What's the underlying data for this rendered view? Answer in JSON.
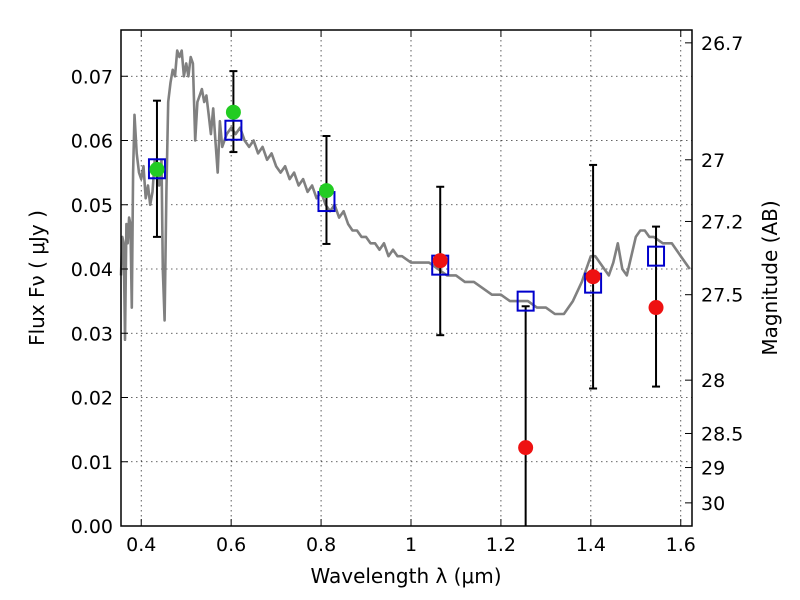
{
  "chart_data": {
    "type": "scatter",
    "xlabel": "Wavelength  λ (μm)",
    "ylabel": "Flux  Fν  ( μJy )",
    "ylabel_right": "Magnitude (AB)",
    "xlim": [
      0.355,
      1.625
    ],
    "ylim": [
      0,
      0.0772
    ],
    "grid": true,
    "x_ticks": [
      0.4,
      0.6,
      0.8,
      1.0,
      1.2,
      1.4,
      1.6
    ],
    "x_tick_labels": [
      "0.4",
      "0.6",
      "0.8",
      "1",
      "1.2",
      "1.4",
      "1.6"
    ],
    "y_ticks": [
      0,
      0.01,
      0.02,
      0.03,
      0.04,
      0.05,
      0.06,
      0.07
    ],
    "y_tick_labels": [
      "0.00",
      "0.01",
      "0.02",
      "0.03",
      "0.04",
      "0.05",
      "0.06",
      "0.07"
    ],
    "right_ticks": [
      {
        "label": "26.7",
        "flux": 0.0752
      },
      {
        "label": "27",
        "flux": 0.057
      },
      {
        "label": "27.2",
        "flux": 0.0474
      },
      {
        "label": "27.5",
        "flux": 0.036
      },
      {
        "label": "28",
        "flux": 0.0227
      },
      {
        "label": "28.5",
        "flux": 0.0144
      },
      {
        "label": "29",
        "flux": 0.0091
      },
      {
        "label": "30",
        "flux": 0.0036
      }
    ],
    "colors": {
      "model": "#808080",
      "model_points": "#0000cc",
      "detections": "#22cc22",
      "upper_limits": "#ee1111",
      "error_bars": "#000000"
    },
    "model_spectrum": [
      [
        0.355,
        0.039
      ],
      [
        0.358,
        0.045
      ],
      [
        0.361,
        0.044
      ],
      [
        0.364,
        0.029
      ],
      [
        0.367,
        0.047
      ],
      [
        0.37,
        0.044
      ],
      [
        0.373,
        0.048
      ],
      [
        0.376,
        0.047
      ],
      [
        0.379,
        0.034
      ],
      [
        0.382,
        0.055
      ],
      [
        0.385,
        0.064
      ],
      [
        0.39,
        0.058
      ],
      [
        0.395,
        0.055
      ],
      [
        0.4,
        0.054
      ],
      [
        0.405,
        0.056
      ],
      [
        0.41,
        0.051
      ],
      [
        0.415,
        0.053
      ],
      [
        0.42,
        0.05
      ],
      [
        0.425,
        0.052
      ],
      [
        0.43,
        0.057
      ],
      [
        0.435,
        0.055
      ],
      [
        0.44,
        0.053
      ],
      [
        0.445,
        0.057
      ],
      [
        0.448,
        0.04
      ],
      [
        0.452,
        0.032
      ],
      [
        0.456,
        0.052
      ],
      [
        0.46,
        0.066
      ],
      [
        0.465,
        0.069
      ],
      [
        0.47,
        0.071
      ],
      [
        0.475,
        0.07
      ],
      [
        0.48,
        0.074
      ],
      [
        0.485,
        0.073
      ],
      [
        0.49,
        0.074
      ],
      [
        0.495,
        0.07
      ],
      [
        0.5,
        0.072
      ],
      [
        0.505,
        0.07
      ],
      [
        0.51,
        0.073
      ],
      [
        0.515,
        0.072
      ],
      [
        0.52,
        0.06
      ],
      [
        0.525,
        0.066
      ],
      [
        0.53,
        0.067
      ],
      [
        0.535,
        0.068
      ],
      [
        0.54,
        0.066
      ],
      [
        0.545,
        0.067
      ],
      [
        0.55,
        0.064
      ],
      [
        0.555,
        0.061
      ],
      [
        0.56,
        0.065
      ],
      [
        0.565,
        0.06
      ],
      [
        0.57,
        0.055
      ],
      [
        0.575,
        0.063
      ],
      [
        0.58,
        0.059
      ],
      [
        0.59,
        0.061
      ],
      [
        0.6,
        0.062
      ],
      [
        0.61,
        0.061
      ],
      [
        0.62,
        0.062
      ],
      [
        0.63,
        0.06
      ],
      [
        0.64,
        0.059
      ],
      [
        0.65,
        0.06
      ],
      [
        0.66,
        0.058
      ],
      [
        0.67,
        0.059
      ],
      [
        0.68,
        0.057
      ],
      [
        0.69,
        0.058
      ],
      [
        0.7,
        0.056
      ],
      [
        0.71,
        0.055
      ],
      [
        0.72,
        0.056
      ],
      [
        0.73,
        0.054
      ],
      [
        0.74,
        0.055
      ],
      [
        0.75,
        0.053
      ],
      [
        0.76,
        0.054
      ],
      [
        0.77,
        0.052
      ],
      [
        0.78,
        0.053
      ],
      [
        0.79,
        0.051
      ],
      [
        0.8,
        0.052
      ],
      [
        0.81,
        0.05
      ],
      [
        0.82,
        0.049
      ],
      [
        0.83,
        0.05
      ],
      [
        0.84,
        0.048
      ],
      [
        0.85,
        0.049
      ],
      [
        0.86,
        0.047
      ],
      [
        0.87,
        0.046
      ],
      [
        0.88,
        0.046
      ],
      [
        0.89,
        0.045
      ],
      [
        0.9,
        0.045
      ],
      [
        0.91,
        0.044
      ],
      [
        0.92,
        0.044
      ],
      [
        0.93,
        0.043
      ],
      [
        0.94,
        0.044
      ],
      [
        0.95,
        0.042
      ],
      [
        0.96,
        0.043
      ],
      [
        0.97,
        0.042
      ],
      [
        0.98,
        0.042
      ],
      [
        1.0,
        0.041
      ],
      [
        1.02,
        0.041
      ],
      [
        1.04,
        0.041
      ],
      [
        1.06,
        0.04
      ],
      [
        1.08,
        0.039
      ],
      [
        1.1,
        0.039
      ],
      [
        1.12,
        0.038
      ],
      [
        1.14,
        0.038
      ],
      [
        1.16,
        0.037
      ],
      [
        1.18,
        0.036
      ],
      [
        1.2,
        0.036
      ],
      [
        1.22,
        0.035
      ],
      [
        1.24,
        0.035
      ],
      [
        1.26,
        0.035
      ],
      [
        1.28,
        0.034
      ],
      [
        1.3,
        0.034
      ],
      [
        1.32,
        0.033
      ],
      [
        1.34,
        0.033
      ],
      [
        1.36,
        0.035
      ],
      [
        1.38,
        0.038
      ],
      [
        1.39,
        0.04
      ],
      [
        1.4,
        0.042
      ],
      [
        1.41,
        0.042
      ],
      [
        1.42,
        0.041
      ],
      [
        1.43,
        0.04
      ],
      [
        1.44,
        0.039
      ],
      [
        1.45,
        0.041
      ],
      [
        1.46,
        0.044
      ],
      [
        1.47,
        0.04
      ],
      [
        1.48,
        0.039
      ],
      [
        1.49,
        0.042
      ],
      [
        1.5,
        0.045
      ],
      [
        1.51,
        0.046
      ],
      [
        1.52,
        0.046
      ],
      [
        1.53,
        0.045
      ],
      [
        1.54,
        0.045
      ],
      [
        1.56,
        0.044
      ],
      [
        1.58,
        0.044
      ],
      [
        1.6,
        0.042
      ],
      [
        1.62,
        0.04
      ]
    ],
    "model_points": [
      {
        "x": 0.435,
        "y": 0.0556
      },
      {
        "x": 0.605,
        "y": 0.0616
      },
      {
        "x": 0.812,
        "y": 0.0505
      },
      {
        "x": 1.065,
        "y": 0.0406
      },
      {
        "x": 1.255,
        "y": 0.035
      },
      {
        "x": 1.405,
        "y": 0.0378
      },
      {
        "x": 1.545,
        "y": 0.042
      }
    ],
    "observed_points": [
      {
        "x": 0.435,
        "y": 0.0555,
        "err_low": 0.045,
        "err_high": 0.0662,
        "kind": "detection"
      },
      {
        "x": 0.605,
        "y": 0.0644,
        "err_low": 0.0582,
        "err_high": 0.0708,
        "kind": "detection"
      },
      {
        "x": 0.812,
        "y": 0.0522,
        "err_low": 0.0439,
        "err_high": 0.0607,
        "kind": "detection"
      },
      {
        "x": 1.065,
        "y": 0.0413,
        "err_low": 0.0297,
        "err_high": 0.0528,
        "kind": "upper_limit"
      },
      {
        "x": 1.255,
        "y": 0.0122,
        "err_low": 0.0,
        "err_high": 0.0342,
        "kind": "upper_limit"
      },
      {
        "x": 1.405,
        "y": 0.0388,
        "err_low": 0.0214,
        "err_high": 0.0562,
        "kind": "upper_limit"
      },
      {
        "x": 1.545,
        "y": 0.034,
        "err_low": 0.0217,
        "err_high": 0.0466,
        "kind": "upper_limit"
      }
    ]
  }
}
